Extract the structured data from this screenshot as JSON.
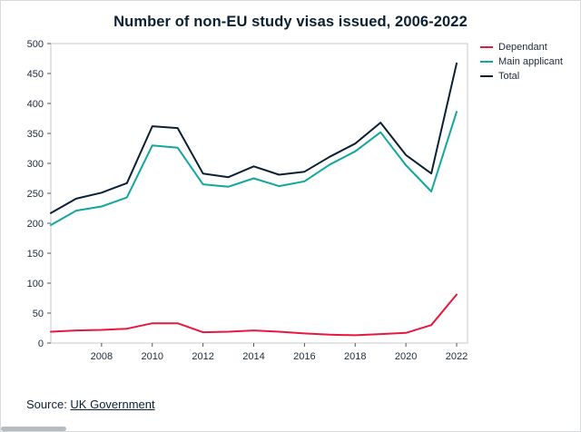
{
  "title": "Number of non-EU study visas issued, 2006-2022",
  "source": {
    "prefix": "Source: ",
    "link_text": "UK Government"
  },
  "colors": {
    "dependant": "#e8173f",
    "main_applicant": "#12a79d",
    "total": "#0b2033",
    "plot_border": "#c4c9ce",
    "tick": "#555555",
    "label": "#1c2b3a"
  },
  "chart_data": {
    "type": "line",
    "title": "Number of non-EU study visas issued, 2006-2022",
    "x": [
      2006,
      2007,
      2008,
      2009,
      2010,
      2011,
      2012,
      2013,
      2014,
      2015,
      2016,
      2017,
      2018,
      2019,
      2020,
      2021,
      2022
    ],
    "series": [
      {
        "name": "Dependant",
        "color": "#e8173f",
        "values": [
          19,
          21,
          22,
          24,
          33,
          33,
          18,
          19,
          21,
          19,
          16,
          14,
          13,
          15,
          17,
          30,
          81
        ]
      },
      {
        "name": "Main applicant",
        "color": "#12a79d",
        "values": [
          197,
          221,
          228,
          243,
          330,
          326,
          265,
          261,
          275,
          262,
          270,
          298,
          320,
          352,
          297,
          253,
          386
        ]
      },
      {
        "name": "Total",
        "color": "#0b2033",
        "values": [
          217,
          241,
          251,
          267,
          362,
          359,
          283,
          277,
          295,
          281,
          286,
          311,
          333,
          368,
          314,
          283,
          467
        ]
      }
    ],
    "xlabel": "",
    "ylabel": "",
    "ylim": [
      0,
      500
    ],
    "ytick_step": 50,
    "xtick_labels": [
      "2008",
      "2010",
      "2012",
      "2014",
      "2016",
      "2018",
      "2020",
      "2022"
    ],
    "grid": false,
    "legend_position": "top-right-outside"
  }
}
